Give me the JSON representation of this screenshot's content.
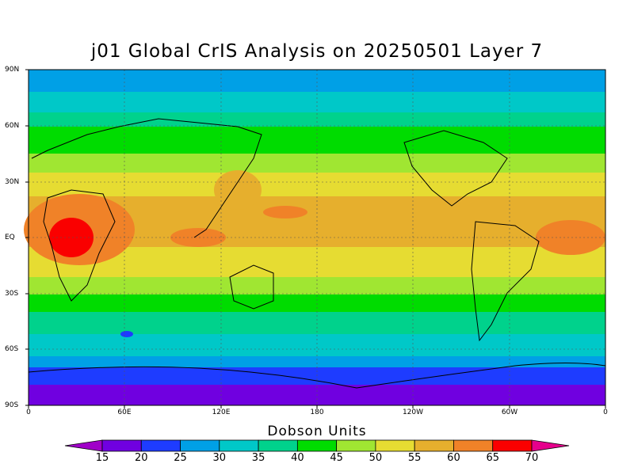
{
  "title": "j01 Global CrIS Analysis on 20250501 Layer 7",
  "lat_labels": [
    "90N",
    "60N",
    "30N",
    "EQ",
    "30S",
    "60S",
    "90S"
  ],
  "lon_labels": [
    "0",
    "60E",
    "120E",
    "180",
    "120W",
    "60W",
    "0"
  ],
  "colorbar": {
    "title": "Dobson Units",
    "ticks": [
      "15",
      "20",
      "25",
      "30",
      "35",
      "40",
      "45",
      "50",
      "55",
      "60",
      "65",
      "70"
    ],
    "colors": [
      "#a000c8",
      "#7000e0",
      "#1e3cff",
      "#00a0e6",
      "#00c8c8",
      "#00d28c",
      "#00dc00",
      "#a0e632",
      "#e6dc32",
      "#e6af2d",
      "#f08228",
      "#fa0000",
      "#e6008c"
    ]
  }
}
